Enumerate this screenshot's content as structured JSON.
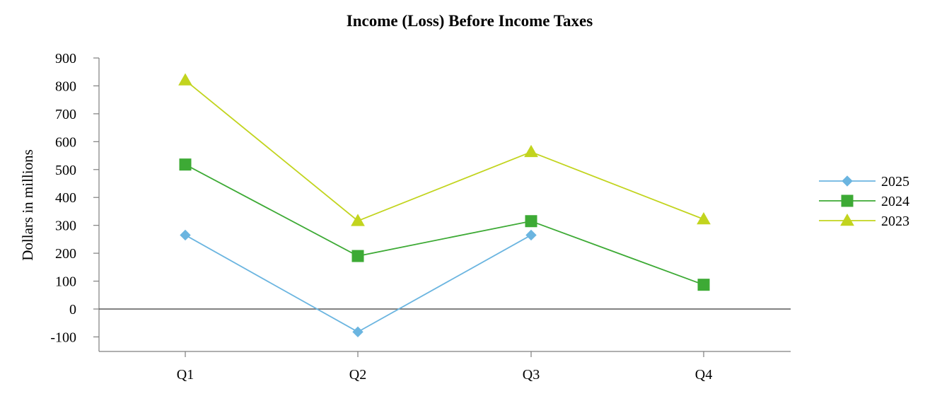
{
  "chart_data": {
    "type": "line",
    "title": "Income (Loss) Before Income Taxes",
    "xlabel": "",
    "ylabel": "Dollars in millions",
    "categories": [
      "Q1",
      "Q2",
      "Q3",
      "Q4"
    ],
    "ylim": [
      -150,
      900
    ],
    "yticks": [
      900,
      800,
      700,
      600,
      500,
      400,
      300,
      200,
      100,
      0,
      -100
    ],
    "grid": false,
    "legend_position": "right",
    "series": [
      {
        "name": "2025",
        "values": [
          265,
          -82,
          265,
          null
        ],
        "color": "#6BB5E0",
        "marker": "diamond"
      },
      {
        "name": "2024",
        "values": [
          518,
          190,
          315,
          87
        ],
        "color": "#3DAA35",
        "marker": "square"
      },
      {
        "name": "2023",
        "values": [
          820,
          316,
          563,
          322
        ],
        "color": "#C2D41E",
        "marker": "triangle"
      }
    ]
  }
}
